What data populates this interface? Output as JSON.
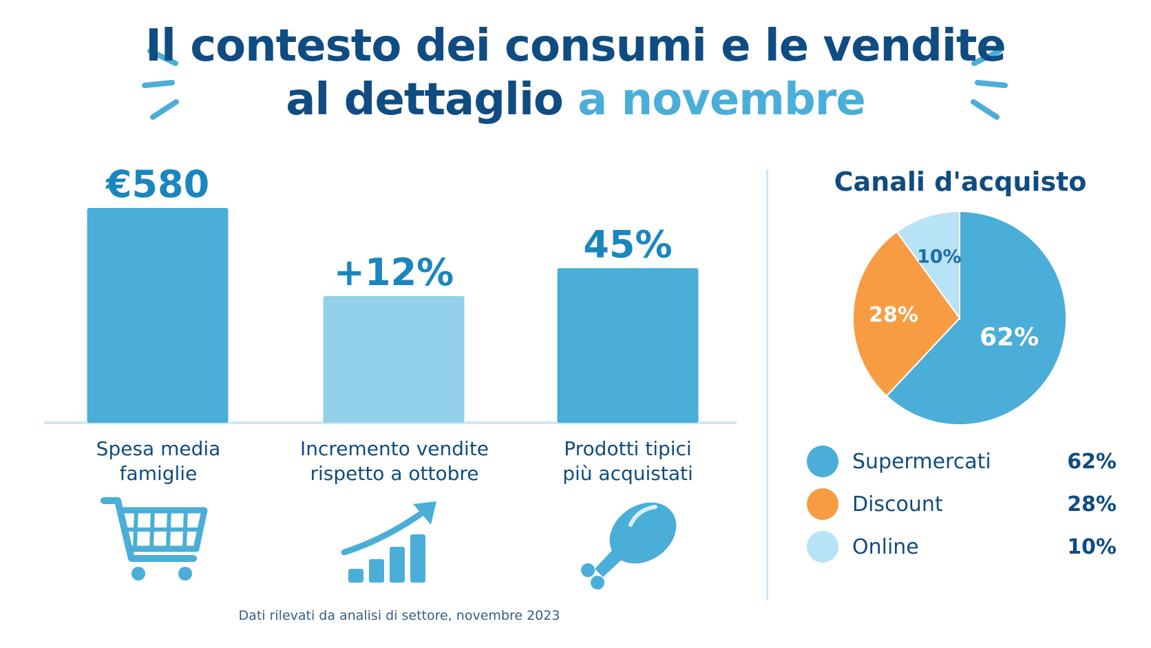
{
  "title": {
    "line1": "Il contesto dei consumi e le vendite",
    "line2_main": "al dettaglio",
    "line2_accent": "a novembre"
  },
  "colors": {
    "dark_blue": "#0f4c81",
    "medium_blue": "#4aaed8",
    "light_blue": "#93d1eb",
    "orange": "#f79c42",
    "pale_blue": "#b8e2f5"
  },
  "chart_data": [
    {
      "type": "bar",
      "categories": [
        "Spesa media famiglie",
        "Incremento vendite rispetto a ottobre",
        "Prodotti tipici più acquistati"
      ],
      "values": [
        580,
        12,
        45
      ],
      "value_labels": [
        "€580",
        "+12%",
        "45%"
      ],
      "bar_colors": [
        "#4aaed8",
        "#93d1eb",
        "#4aaed8"
      ],
      "label_lines": [
        [
          "Spesa media",
          "famiglie"
        ],
        [
          "Incremento vendite",
          "rispetto a ottobre"
        ],
        [
          "Prodotti tipici",
          "più acquistati"
        ]
      ],
      "icons": [
        "shopping-cart-icon",
        "growth-chart-icon",
        "chicken-leg-icon"
      ],
      "bar_levels": [
        1.0,
        0.59,
        0.72
      ],
      "grid": false
    },
    {
      "type": "pie",
      "title": "Canali d'acquisto",
      "slices": [
        {
          "label": "Supermercati",
          "value": 62,
          "display": "62%",
          "color": "#4aaed8"
        },
        {
          "label": "Discount",
          "value": 28,
          "display": "28%",
          "color": "#f79c42"
        },
        {
          "label": "Online",
          "value": 10,
          "display": "10%",
          "color": "#b8e2f5"
        }
      ]
    }
  ],
  "footnote": "Dati rilevati da analisi di settore, novembre 2023"
}
